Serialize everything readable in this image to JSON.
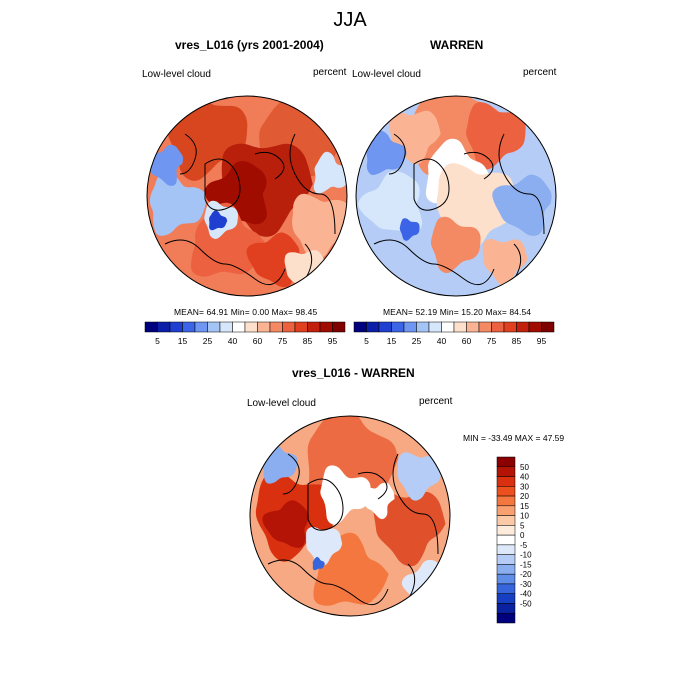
{
  "figure": {
    "title": "JJA"
  },
  "panels": [
    {
      "title": "vres_L016 (yrs 2001-2004)",
      "left_label": "Low-level cloud",
      "right_label": "percent",
      "stats": "MEAN=  64.91  Min=   0.00  Max=  98.45",
      "scheme": "high"
    },
    {
      "title": "WARREN",
      "left_label": "Low-level cloud",
      "right_label": "percent",
      "stats": "MEAN=  52.19  Min=  15.20  Max=  84.54",
      "scheme": "mid"
    },
    {
      "title": "vres_L016 - WARREN",
      "left_label": "Low-level cloud",
      "right_label": "percent",
      "stats": "MIN = -33.49 MAX =  47.59",
      "scheme": "diff"
    }
  ],
  "colorbar_top": {
    "labels": [
      "5",
      "15",
      "25",
      "40",
      "60",
      "75",
      "85",
      "95"
    ],
    "colors": [
      "#00007f",
      "#0a1ea8",
      "#1f3fd0",
      "#3c64e6",
      "#6f96f0",
      "#a5c4f6",
      "#d6e6fb",
      "#ffffff",
      "#fde0cc",
      "#fab494",
      "#f48a63",
      "#ec6140",
      "#e0401f",
      "#c2200c",
      "#a10c00",
      "#7f0000"
    ]
  },
  "colorbar_diff": {
    "labels": [
      "50",
      "40",
      "30",
      "20",
      "15",
      "10",
      "5",
      "0",
      "-5",
      "-10",
      "-15",
      "-20",
      "-30",
      "-40",
      "-50"
    ],
    "colors": [
      "#8b0000",
      "#b31405",
      "#d9300f",
      "#ec501e",
      "#f4773f",
      "#f9a070",
      "#fcc9a6",
      "#fdebdc",
      "#ffffff",
      "#dde9fb",
      "#b5cdf6",
      "#8aaef0",
      "#5f8de8",
      "#3766dc",
      "#173fc4",
      "#0a22a0",
      "#00007f"
    ]
  }
}
